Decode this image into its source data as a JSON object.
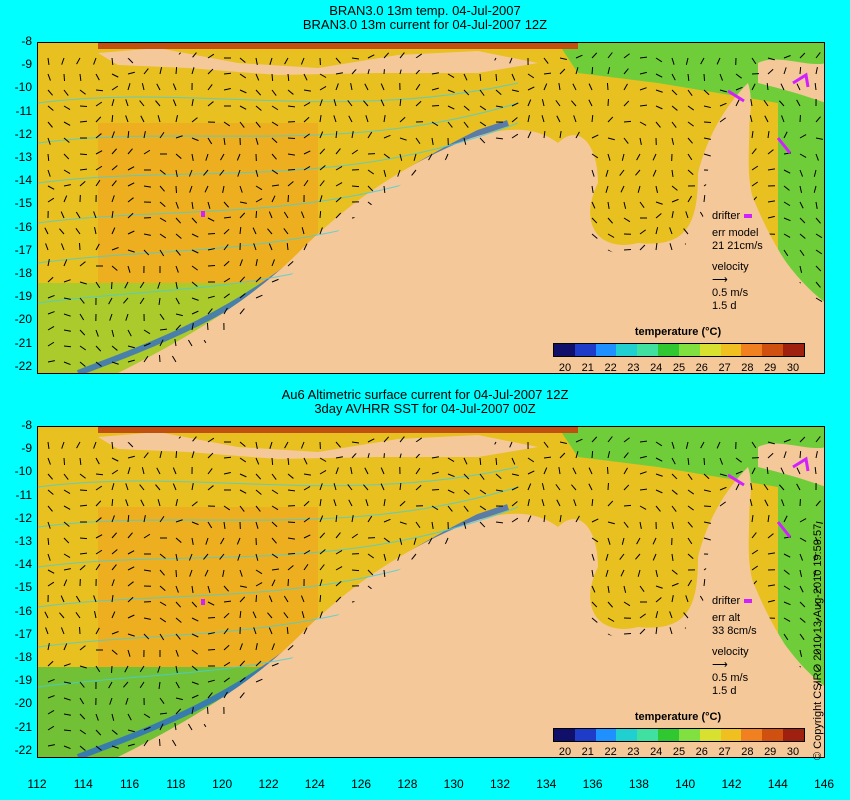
{
  "top_panel": {
    "title_line1": "BRAN3.0 13m temp. 04-Jul-2007",
    "title_line2": "BRAN3.0 13m current for 04-Jul-2007 12Z",
    "legend": {
      "drifter": "drifter",
      "err_label": "err model",
      "err_values": "21 21cm/s",
      "velocity": "velocity",
      "speed": "0.5 m/s",
      "duration": "1.5 d"
    }
  },
  "bottom_panel": {
    "title_line1": "Au6 Altimetric surface current for 04-Jul-2007 12Z",
    "title_line2": "3day AVHRR SST for 04-Jul-2007 00Z",
    "legend": {
      "drifter": "drifter",
      "err_label": "err alt",
      "err_values": "33 8cm/s",
      "velocity": "velocity",
      "speed": "0.5 m/s",
      "duration": "1.5 d"
    }
  },
  "colorbar": {
    "title": "temperature (°C)",
    "ticks": [
      "20",
      "21",
      "22",
      "23",
      "24",
      "25",
      "26",
      "27",
      "28",
      "29",
      "30"
    ]
  },
  "y_axis_ticks": [
    "-8",
    "-9",
    "-10",
    "-11",
    "-12",
    "-13",
    "-14",
    "-15",
    "-16",
    "-17",
    "-18",
    "-19",
    "-20",
    "-21",
    "-22"
  ],
  "x_axis_ticks": [
    "112",
    "114",
    "116",
    "118",
    "120",
    "122",
    "124",
    "126",
    "128",
    "130",
    "132",
    "134",
    "136",
    "138",
    "140",
    "142",
    "144",
    "146"
  ],
  "copyright": "© Copyright CSIRO 2010    13-Aug-2010 19:59:57",
  "colors": {
    "background": "#00ffff",
    "land": "#f5c89a",
    "drifter": "#d020ff",
    "contour": "#40d0e0"
  }
}
